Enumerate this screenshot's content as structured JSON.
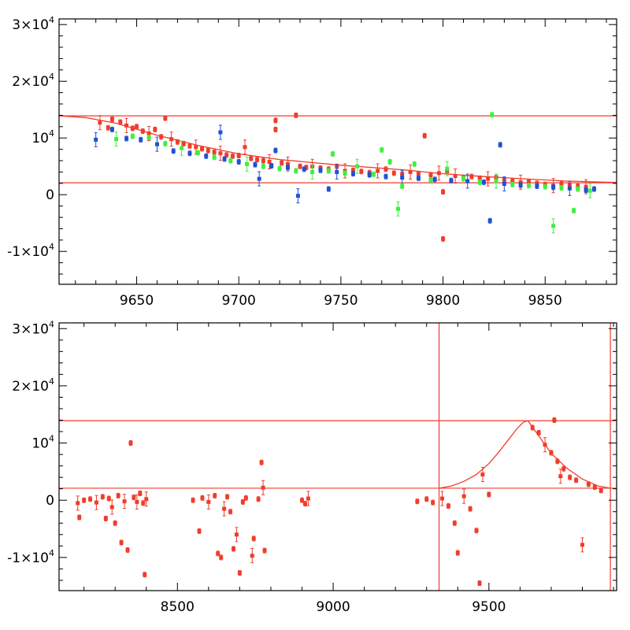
{
  "chart_data": [
    {
      "type": "scatter",
      "panel": "top",
      "xlim": [
        9612,
        9885
      ],
      "ylim": [
        -15800,
        31000
      ],
      "xticks": [
        9650,
        9700,
        9750,
        9800,
        9850
      ],
      "xtick_labels": [
        "9650",
        "9700",
        "9750",
        "9800",
        "9850"
      ],
      "yticks": [
        -10000,
        0,
        10000,
        20000,
        30000
      ],
      "ytick_labels": [
        {
          "mantissa": "-1×10",
          "exp": "4"
        },
        {
          "mantissa": "0",
          "exp": ""
        },
        {
          "mantissa": "10",
          "exp": "4"
        },
        {
          "mantissa": "2×10",
          "exp": "4"
        },
        {
          "mantissa": "3×10",
          "exp": "4"
        }
      ],
      "hlines": [
        13900,
        2100
      ],
      "vlines": [],
      "colors": {
        "red": "#f03c2c",
        "blue": "#1c52d6",
        "green": "#3ef03e",
        "axis": "#000000"
      },
      "model_curve": [
        [
          9612,
          13900
        ],
        [
          9625,
          13600
        ],
        [
          9640,
          12600
        ],
        [
          9660,
          10500
        ],
        [
          9680,
          8700
        ],
        [
          9700,
          7200
        ],
        [
          9720,
          6200
        ],
        [
          9750,
          5200
        ],
        [
          9780,
          4400
        ],
        [
          9800,
          3700
        ],
        [
          9820,
          3200
        ],
        [
          9840,
          2800
        ],
        [
          9860,
          2400
        ],
        [
          9885,
          2150
        ]
      ],
      "series": [
        {
          "name": "red",
          "color": "#f03c2c",
          "points": [
            [
              9632,
              12700
            ],
            [
              9636,
              11800
            ],
            [
              9638,
              13300
            ],
            [
              9642,
              12800
            ],
            [
              9645,
              12200
            ],
            [
              9648,
              11700
            ],
            [
              9650,
              12000
            ],
            [
              9653,
              11200
            ],
            [
              9656,
              10800
            ],
            [
              9659,
              11500
            ],
            [
              9662,
              10200
            ],
            [
              9664,
              13500
            ],
            [
              9667,
              9800
            ],
            [
              9670,
              9300
            ],
            [
              9673,
              9000
            ],
            [
              9676,
              8600
            ],
            [
              9679,
              8400
            ],
            [
              9682,
              8100
            ],
            [
              9685,
              7800
            ],
            [
              9688,
              7500
            ],
            [
              9691,
              7300
            ],
            [
              9694,
              7000
            ],
            [
              9697,
              6800
            ],
            [
              9700,
              6900
            ],
            [
              9703,
              8400
            ],
            [
              9706,
              6400
            ],
            [
              9709,
              6200
            ],
            [
              9712,
              6000
            ],
            [
              9715,
              5800
            ],
            [
              9718,
              13100
            ],
            [
              9718,
              11500
            ],
            [
              9721,
              5600
            ],
            [
              9724,
              5400
            ],
            [
              9728,
              14000
            ],
            [
              9730,
              5000
            ],
            [
              9733,
              4800
            ],
            [
              9736,
              5000
            ],
            [
              9740,
              4700
            ],
            [
              9744,
              4500
            ],
            [
              9748,
              5000
            ],
            [
              9752,
              4200
            ],
            [
              9756,
              4300
            ],
            [
              9760,
              4100
            ],
            [
              9764,
              3900
            ],
            [
              9768,
              4200
            ],
            [
              9772,
              4500
            ],
            [
              9776,
              3800
            ],
            [
              9780,
              3600
            ],
            [
              9784,
              4000
            ],
            [
              9788,
              3700
            ],
            [
              9791,
              10400
            ],
            [
              9794,
              3500
            ],
            [
              9798,
              3800
            ],
            [
              9800,
              500
            ],
            [
              9800,
              -7800
            ],
            [
              9802,
              4200
            ],
            [
              9806,
              3300
            ],
            [
              9810,
              3000
            ],
            [
              9814,
              3200
            ],
            [
              9818,
              2900
            ],
            [
              9822,
              2800
            ],
            [
              9826,
              3000
            ],
            [
              9830,
              2600
            ],
            [
              9834,
              2400
            ],
            [
              9838,
              2200
            ],
            [
              9842,
              2300
            ],
            [
              9846,
              2000
            ],
            [
              9850,
              1800
            ],
            [
              9854,
              1600
            ],
            [
              9858,
              1900
            ],
            [
              9862,
              1700
            ],
            [
              9866,
              1500
            ],
            [
              9870,
              1400
            ]
          ]
        },
        {
          "name": "blue",
          "color": "#1c52d6",
          "points": [
            [
              9630,
              9700
            ],
            [
              9638,
              11500
            ],
            [
              9645,
              9900
            ],
            [
              9652,
              9700
            ],
            [
              9660,
              8900
            ],
            [
              9668,
              7700
            ],
            [
              9676,
              7300
            ],
            [
              9684,
              6800
            ],
            [
              9691,
              11000
            ],
            [
              9693,
              6300
            ],
            [
              9700,
              5800
            ],
            [
              9708,
              5300
            ],
            [
              9710,
              2800
            ],
            [
              9716,
              5100
            ],
            [
              9718,
              7800
            ],
            [
              9724,
              4800
            ],
            [
              9729,
              -200
            ],
            [
              9732,
              4500
            ],
            [
              9740,
              4300
            ],
            [
              9744,
              1000
            ],
            [
              9748,
              4000
            ],
            [
              9756,
              3700
            ],
            [
              9764,
              3500
            ],
            [
              9772,
              3200
            ],
            [
              9780,
              3000
            ],
            [
              9788,
              2900
            ],
            [
              9796,
              2700
            ],
            [
              9804,
              2500
            ],
            [
              9812,
              2400
            ],
            [
              9820,
              2200
            ],
            [
              9823,
              -4600
            ],
            [
              9828,
              8800
            ],
            [
              9830,
              1900
            ],
            [
              9838,
              1700
            ],
            [
              9846,
              1500
            ],
            [
              9854,
              1300
            ],
            [
              9862,
              1100
            ],
            [
              9870,
              800
            ],
            [
              9874,
              1000
            ]
          ]
        },
        {
          "name": "green",
          "color": "#3ef03e",
          "points": [
            [
              9640,
              9800
            ],
            [
              9648,
              10300
            ],
            [
              9656,
              10100
            ],
            [
              9664,
              9000
            ],
            [
              9672,
              8200
            ],
            [
              9680,
              7400
            ],
            [
              9688,
              6600
            ],
            [
              9696,
              6000
            ],
            [
              9704,
              5400
            ],
            [
              9712,
              5000
            ],
            [
              9720,
              4600
            ],
            [
              9728,
              4200
            ],
            [
              9736,
              4000
            ],
            [
              9744,
              4200
            ],
            [
              9746,
              7200
            ],
            [
              9752,
              3800
            ],
            [
              9758,
              5000
            ],
            [
              9766,
              3600
            ],
            [
              9770,
              7900
            ],
            [
              9774,
              5800
            ],
            [
              9778,
              -2500
            ],
            [
              9780,
              1500
            ],
            [
              9786,
              5400
            ],
            [
              9794,
              2600
            ],
            [
              9802,
              4600
            ],
            [
              9810,
              2800
            ],
            [
              9818,
              2200
            ],
            [
              9824,
              14100
            ],
            [
              9826,
              2400
            ],
            [
              9834,
              1800
            ],
            [
              9842,
              1600
            ],
            [
              9850,
              1400
            ],
            [
              9854,
              -5500
            ],
            [
              9858,
              1200
            ],
            [
              9864,
              -2800
            ],
            [
              9866,
              1000
            ],
            [
              9872,
              700
            ]
          ]
        }
      ]
    },
    {
      "type": "scatter",
      "panel": "bottom",
      "xlim": [
        8120,
        9910
      ],
      "ylim": [
        -15800,
        31000
      ],
      "xticks": [
        8500,
        9000,
        9500
      ],
      "xtick_labels": [
        "8500",
        "9000",
        "9500"
      ],
      "yticks": [
        -10000,
        0,
        10000,
        20000,
        30000
      ],
      "ytick_labels": [
        {
          "mantissa": "-1×10",
          "exp": "4"
        },
        {
          "mantissa": "0",
          "exp": ""
        },
        {
          "mantissa": "10",
          "exp": "4"
        },
        {
          "mantissa": "2×10",
          "exp": "4"
        },
        {
          "mantissa": "3×10",
          "exp": "4"
        }
      ],
      "hlines": [
        13900,
        2100
      ],
      "vlines": [
        9340,
        9890
      ],
      "colors": {
        "red": "#f03c2c",
        "axis": "#000000"
      },
      "model_curve": [
        [
          9340,
          2100
        ],
        [
          9380,
          2500
        ],
        [
          9420,
          3300
        ],
        [
          9460,
          4500
        ],
        [
          9500,
          6400
        ],
        [
          9530,
          8300
        ],
        [
          9560,
          10400
        ],
        [
          9590,
          12500
        ],
        [
          9610,
          13600
        ],
        [
          9625,
          13900
        ],
        [
          9650,
          12000
        ],
        [
          9700,
          8200
        ],
        [
          9750,
          5600
        ],
        [
          9800,
          3700
        ],
        [
          9850,
          2500
        ],
        [
          9890,
          2100
        ]
      ],
      "series": [
        {
          "name": "red",
          "color": "#f03c2c",
          "points": [
            [
              8180,
              -500
            ],
            [
              8185,
              -3000
            ],
            [
              8200,
              0
            ],
            [
              8220,
              200
            ],
            [
              8240,
              -400
            ],
            [
              8260,
              600
            ],
            [
              8270,
              -3200
            ],
            [
              8280,
              300
            ],
            [
              8290,
              -1200
            ],
            [
              8300,
              -4000
            ],
            [
              8310,
              800
            ],
            [
              8320,
              -7400
            ],
            [
              8330,
              -200
            ],
            [
              8340,
              -8700
            ],
            [
              8350,
              10000
            ],
            [
              8360,
              500
            ],
            [
              8370,
              -300
            ],
            [
              8380,
              1200
            ],
            [
              8390,
              -500
            ],
            [
              8395,
              -13000
            ],
            [
              8400,
              200
            ],
            [
              8550,
              0
            ],
            [
              8570,
              -5400
            ],
            [
              8580,
              400
            ],
            [
              8600,
              -300
            ],
            [
              8620,
              800
            ],
            [
              8630,
              -9300
            ],
            [
              8640,
              -10000
            ],
            [
              8650,
              -1500
            ],
            [
              8660,
              600
            ],
            [
              8670,
              -2000
            ],
            [
              8680,
              -8500
            ],
            [
              8690,
              -6000
            ],
            [
              8700,
              -12700
            ],
            [
              8710,
              -300
            ],
            [
              8720,
              400
            ],
            [
              8740,
              -9700
            ],
            [
              8745,
              -6700
            ],
            [
              8760,
              200
            ],
            [
              8770,
              6600
            ],
            [
              8775,
              2200
            ],
            [
              8780,
              -8800
            ],
            [
              8900,
              0
            ],
            [
              8910,
              -600
            ],
            [
              8920,
              300
            ],
            [
              9270,
              -200
            ],
            [
              9300,
              200
            ],
            [
              9320,
              -400
            ],
            [
              9350,
              300
            ],
            [
              9370,
              -1000
            ],
            [
              9390,
              -4000
            ],
            [
              9400,
              -9200
            ],
            [
              9420,
              700
            ],
            [
              9440,
              -1500
            ],
            [
              9460,
              -5300
            ],
            [
              9470,
              -14500
            ],
            [
              9480,
              4500
            ],
            [
              9500,
              1000
            ],
            [
              9640,
              12700
            ],
            [
              9660,
              11800
            ],
            [
              9680,
              9700
            ],
            [
              9700,
              8300
            ],
            [
              9710,
              14000
            ],
            [
              9720,
              6800
            ],
            [
              9730,
              4200
            ],
            [
              9740,
              5500
            ],
            [
              9760,
              4000
            ],
            [
              9780,
              3500
            ],
            [
              9800,
              -7800
            ],
            [
              9820,
              2800
            ],
            [
              9840,
              2300
            ],
            [
              9860,
              1700
            ]
          ]
        }
      ]
    }
  ]
}
